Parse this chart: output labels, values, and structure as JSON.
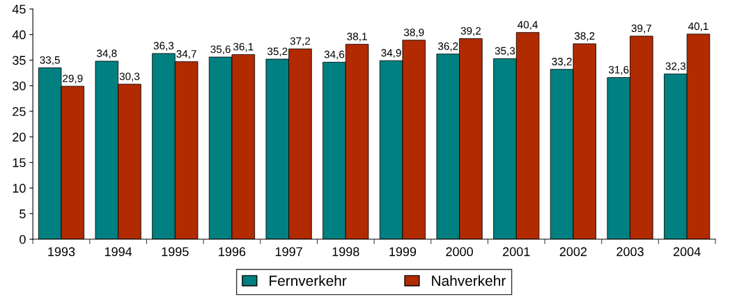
{
  "chart_data": {
    "type": "bar",
    "categories": [
      "1993",
      "1994",
      "1995",
      "1996",
      "1997",
      "1998",
      "1999",
      "2000",
      "2001",
      "2002",
      "2003",
      "2004"
    ],
    "series": [
      {
        "name": "Fernverkehr",
        "color": "#008080",
        "values": [
          33.5,
          34.8,
          36.3,
          35.6,
          35.2,
          34.6,
          34.9,
          36.2,
          35.3,
          33.2,
          31.6,
          32.3
        ],
        "value_labels": [
          "33,5",
          "34,8",
          "36,3",
          "35,6",
          "35,2",
          "34,6",
          "34,9",
          "36,2",
          "35,3",
          "33,2",
          "31,6",
          "32,3"
        ]
      },
      {
        "name": "Nahverkehr",
        "color": "#b22a00",
        "values": [
          29.9,
          30.3,
          34.7,
          36.1,
          37.2,
          38.1,
          38.9,
          39.2,
          40.4,
          38.2,
          39.7,
          40.1
        ],
        "value_labels": [
          "29,9",
          "30,3",
          "34,7",
          "36,1",
          "37,2",
          "38,1",
          "38,9",
          "39,2",
          "40,4",
          "38,2",
          "39,7",
          "40,1"
        ]
      }
    ],
    "ylim": [
      0,
      45
    ],
    "yticks": [
      0,
      5,
      10,
      15,
      20,
      25,
      30,
      35,
      40,
      45
    ],
    "grid": false,
    "legend": "bottom"
  }
}
